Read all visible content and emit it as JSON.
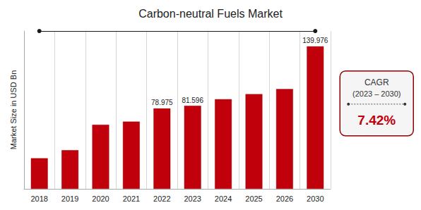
{
  "chart_data": {
    "type": "bar",
    "title": "Carbon-neutral Fuels Market",
    "ylabel": "Market Size in USD Bn",
    "categories": [
      "2018",
      "2019",
      "2020",
      "2021",
      "2022",
      "2023",
      "2024",
      "2025",
      "2026",
      "2030"
    ],
    "values": [
      30.0,
      38.0,
      63.0,
      66.0,
      78.975,
      81.596,
      88.0,
      93.0,
      98.0,
      139.976
    ],
    "value_labels": [
      null,
      null,
      null,
      null,
      "78.975",
      "81.596",
      null,
      null,
      null,
      "139.976"
    ],
    "color": "#c0000b",
    "ylim": [
      0,
      155
    ],
    "grid": true,
    "tick_labels": "x",
    "annotations": [
      "CAGR",
      "(2023 – 2030)",
      "7.42%"
    ]
  }
}
